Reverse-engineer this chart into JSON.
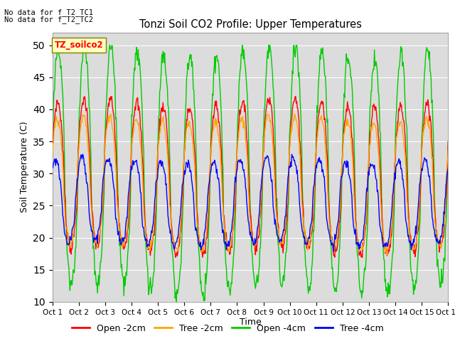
{
  "title": "Tonzi Soil CO2 Profile: Upper Temperatures",
  "ylabel": "Soil Temperature (C)",
  "xlabel": "Time",
  "annotation_line1": "No data for f_T2_TC1",
  "annotation_line2": "No data for f_T2_TC2",
  "legend_label": "TZ_soilco2",
  "series_labels": [
    "Open -2cm",
    "Tree -2cm",
    "Open -4cm",
    "Tree -4cm"
  ],
  "series_colors": [
    "#ff0000",
    "#ffa500",
    "#00cc00",
    "#0000ff"
  ],
  "ylim": [
    10,
    52
  ],
  "yticks": [
    10,
    15,
    20,
    25,
    30,
    35,
    40,
    45,
    50
  ],
  "xtick_labels": [
    "Oct 1",
    "Oct 2",
    "Oct 3",
    "Oct 4",
    "Oct 5",
    "Oct 6",
    "Oct 7",
    "Oct 8",
    "Oct 9",
    "Oct 10",
    "Oct 11",
    "Oct 12",
    "Oct 13",
    "Oct 14",
    "Oct 15",
    "Oct 16"
  ],
  "bg_color": "#dcdcdc",
  "fig_bg": "#ffffff",
  "linewidth": 1.0,
  "n_days": 15,
  "pts_per_day": 48,
  "grid_color": "#ffffff"
}
